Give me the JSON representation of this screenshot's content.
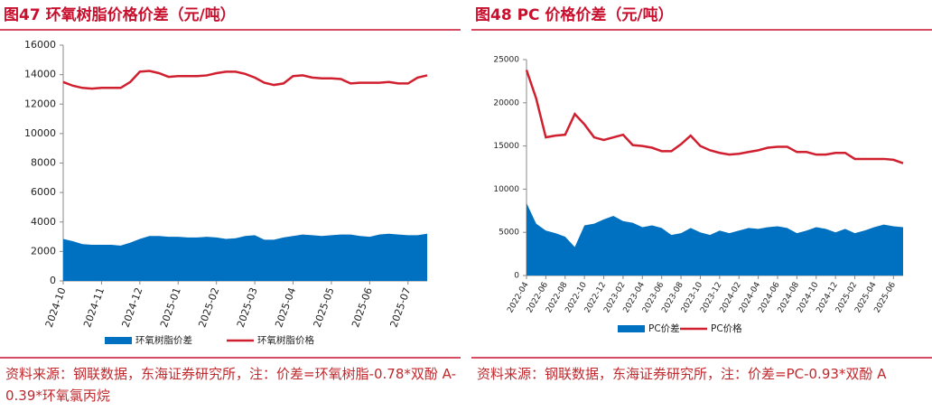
{
  "chart_data": [
    {
      "type": "combo",
      "title": "图47  环氧树脂价格价差（元/吨）",
      "source": "资料来源：钢联数据，东海证券研究所，注：价差=环氧树脂-0.78*双酚 A-0.39*环氧氯丙烷",
      "categories": [
        "2024-10",
        null,
        null,
        null,
        "2024-11",
        null,
        null,
        null,
        "2024-12",
        null,
        null,
        null,
        "2025-01",
        null,
        null,
        null,
        "2025-02",
        null,
        null,
        null,
        "2025-03",
        null,
        null,
        null,
        "2025-04",
        null,
        null,
        null,
        "2025-05",
        null,
        null,
        null,
        "2025-06",
        null,
        null,
        null,
        "2025-07",
        null,
        null
      ],
      "series": [
        {
          "name": "环氧树脂价差",
          "type": "area",
          "color": "#0070c0",
          "values": [
            2850,
            2700,
            2500,
            2450,
            2450,
            2450,
            2400,
            2600,
            2850,
            3050,
            3050,
            3000,
            3000,
            2950,
            2950,
            3000,
            2950,
            2850,
            2900,
            3050,
            3100,
            2800,
            2800,
            2950,
            3050,
            3150,
            3100,
            3050,
            3100,
            3150,
            3150,
            3050,
            3000,
            3150,
            3200,
            3150,
            3100,
            3100,
            3200
          ]
        },
        {
          "name": "环氧树脂价格",
          "type": "line",
          "color": "#d0202f",
          "values": [
            13500,
            13250,
            13100,
            13050,
            13100,
            13100,
            13100,
            13500,
            14200,
            14250,
            14100,
            13850,
            13900,
            13900,
            13900,
            13950,
            14100,
            14200,
            14200,
            14050,
            13800,
            13450,
            13300,
            13400,
            13900,
            13950,
            13800,
            13750,
            13750,
            13700,
            13400,
            13450,
            13450,
            13450,
            13500,
            13400,
            13400,
            13800,
            13950
          ]
        }
      ],
      "ylim": [
        0,
        16000
      ],
      "yticks": [
        0,
        2000,
        4000,
        6000,
        8000,
        10000,
        12000,
        14000,
        16000
      ]
    },
    {
      "type": "combo",
      "title": "图48  PC 价格价差（元/吨）",
      "source": "资料来源：钢联数据，东海证券研究所，注：价差=PC-0.93*双酚 A",
      "categories": [
        "2022-04",
        null,
        "2022-06",
        null,
        "2022-08",
        null,
        "2022-10",
        null,
        "2022-12",
        null,
        "2023-02",
        null,
        "2023-04",
        null,
        "2023-06",
        null,
        "2023-08",
        null,
        "2023-10",
        null,
        "2023-12",
        null,
        "2024-02",
        null,
        "2024-04",
        null,
        "2024-06",
        null,
        "2024-08",
        null,
        "2024-10",
        null,
        "2024-12",
        null,
        "2025-02",
        null,
        "2025-04",
        null,
        "2025-06",
        null
      ],
      "series": [
        {
          "name": "PC价差",
          "type": "area",
          "color": "#0070c0",
          "values": [
            8400,
            6000,
            5200,
            4900,
            4500,
            3300,
            5800,
            6000,
            6500,
            6900,
            6300,
            6100,
            5600,
            5800,
            5500,
            4700,
            4900,
            5500,
            5000,
            4700,
            5200,
            4900,
            5200,
            5500,
            5400,
            5600,
            5700,
            5500,
            4900,
            5200,
            5600,
            5400,
            5000,
            5400,
            4900,
            5200,
            5600,
            5900,
            5700,
            5600
          ]
        },
        {
          "name": "PC价格",
          "type": "line",
          "color": "#d0202f",
          "values": [
            23800,
            20500,
            16000,
            16200,
            16300,
            18700,
            17500,
            16000,
            15700,
            16000,
            16300,
            15100,
            15000,
            14800,
            14400,
            14400,
            15200,
            16200,
            15000,
            14500,
            14200,
            14000,
            14100,
            14300,
            14500,
            14800,
            14900,
            14900,
            14300,
            14300,
            14000,
            14000,
            14200,
            14200,
            13500,
            13500,
            13500,
            13500,
            13400,
            13000
          ]
        }
      ],
      "ylim": [
        0,
        25000
      ],
      "yticks": [
        0,
        5000,
        10000,
        15000,
        20000,
        25000
      ]
    }
  ]
}
